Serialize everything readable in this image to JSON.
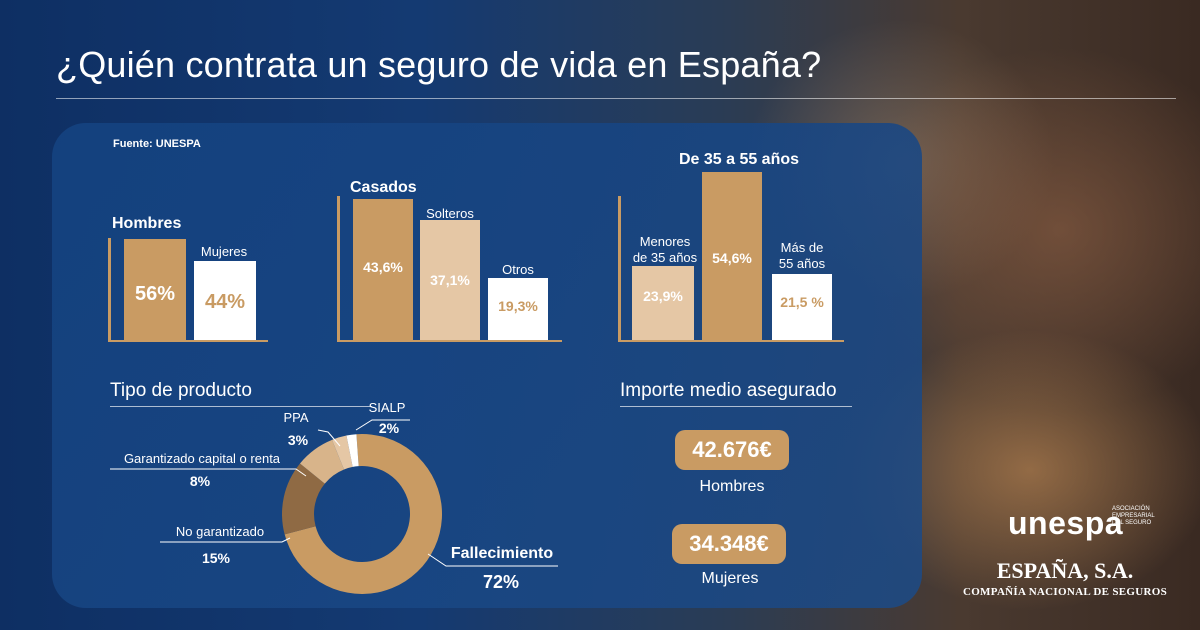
{
  "title": "¿Quién contrata un seguro de vida en España?",
  "source": "Fuente: UNESPA",
  "colors": {
    "dark_gold": "#c99b63",
    "light_gold": "#e5c7a5",
    "white": "#ffffff",
    "brown": "#8f6a44"
  },
  "chart_data": [
    {
      "type": "bar",
      "categories": [
        "Hombres",
        "Mujeres"
      ],
      "values": [
        56,
        44
      ],
      "value_labels": [
        "56%",
        "44%"
      ],
      "ylim": [
        0,
        100
      ]
    },
    {
      "type": "bar",
      "categories": [
        "Casados",
        "Solteros",
        "Otros"
      ],
      "values": [
        43.6,
        37.1,
        19.3
      ],
      "value_labels": [
        "43,6%",
        "37,1%",
        "19,3%"
      ],
      "ylim": [
        0,
        100
      ]
    },
    {
      "type": "bar",
      "categories": [
        "Menores de 35 años",
        "De 35 a 55 años",
        "Más de 55 años"
      ],
      "category_lines": [
        [
          "Menores",
          "de 35 años"
        ],
        [
          "De 35 a 55 años"
        ],
        [
          "Más de",
          "55 años"
        ]
      ],
      "values": [
        23.9,
        54.6,
        21.5
      ],
      "value_labels": [
        "23,9%",
        "54,6%",
        "21,5 %"
      ],
      "ylim": [
        0,
        100
      ]
    },
    {
      "type": "pie",
      "title": "Tipo de producto",
      "categories": [
        "Fallecimiento",
        "No garantizado",
        "Garantizado capital o renta",
        "PPA",
        "SIALP"
      ],
      "values": [
        72,
        15,
        8,
        3,
        2
      ],
      "value_labels": [
        "72%",
        "15%",
        "8%",
        "3%",
        "2%"
      ],
      "colors": [
        "#c99b63",
        "#8f6a44",
        "#d8b48a",
        "#e5c7a5",
        "#ffffff"
      ]
    }
  ],
  "amounts": {
    "title": "Importe medio asegurado",
    "items": [
      {
        "value": "42.676€",
        "label": "Hombres"
      },
      {
        "value": "34.348€",
        "label": "Mujeres"
      }
    ]
  },
  "logos": {
    "unespa": "unespa",
    "unespa_sub": [
      "ASOCIACIÓN",
      "EMPRESARIAL",
      "DEL SEGURO"
    ],
    "espana": "ESPAÑA, S.A.",
    "compania": "COMPAÑÍA NACIONAL DE SEGUROS"
  }
}
